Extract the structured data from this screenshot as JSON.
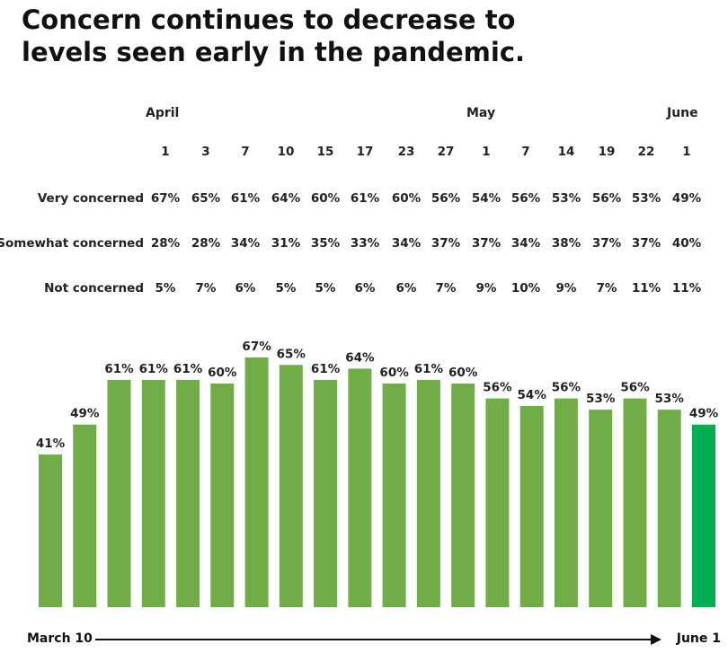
{
  "title_lines": [
    "Concern continues to decrease to",
    "levels seen early in the pandemic."
  ],
  "table": {
    "months": [
      {
        "label": "April",
        "col": 0
      },
      {
        "label": "May",
        "col": 8
      },
      {
        "label": "June",
        "col": 13
      }
    ],
    "days": [
      "1",
      "3",
      "7",
      "10",
      "15",
      "17",
      "23",
      "27",
      "1",
      "7",
      "14",
      "19",
      "22",
      "1"
    ],
    "rows": [
      {
        "label": "Very concerned",
        "values": [
          "67%",
          "65%",
          "61%",
          "64%",
          "60%",
          "61%",
          "60%",
          "56%",
          "54%",
          "56%",
          "53%",
          "56%",
          "53%",
          "49%"
        ]
      },
      {
        "label": "Somewhat concerned",
        "values": [
          "28%",
          "28%",
          "34%",
          "31%",
          "35%",
          "33%",
          "34%",
          "37%",
          "37%",
          "34%",
          "38%",
          "37%",
          "37%",
          "40%"
        ]
      },
      {
        "label": "Not concerned",
        "values": [
          "5%",
          "7%",
          "6%",
          "5%",
          "5%",
          "6%",
          "6%",
          "7%",
          "9%",
          "10%",
          "9%",
          "7%",
          "11%",
          "11%"
        ]
      }
    ]
  },
  "chart_data": {
    "type": "bar",
    "values": [
      41,
      49,
      61,
      61,
      61,
      60,
      67,
      65,
      61,
      64,
      60,
      61,
      60,
      56,
      54,
      56,
      53,
      56,
      53,
      49
    ],
    "value_labels": [
      "41%",
      "49%",
      "61%",
      "61%",
      "61%",
      "60%",
      "67%",
      "65%",
      "61%",
      "64%",
      "60%",
      "61%",
      "60%",
      "56%",
      "54%",
      "56%",
      "53%",
      "56%",
      "53%",
      "49%"
    ],
    "bar_color": "#70ad47",
    "highlight_color": "#00b050",
    "highlight_index": 19,
    "ylim": [
      0,
      67
    ]
  },
  "axis": {
    "start_label": "March 10",
    "end_label": "June 1"
  }
}
